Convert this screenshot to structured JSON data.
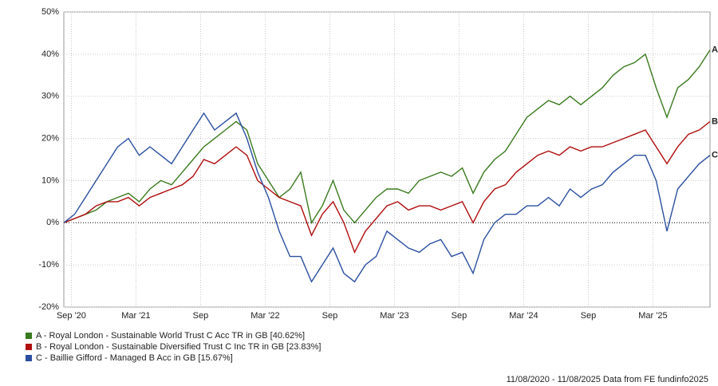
{
  "chart_data": {
    "type": "line",
    "ylim": [
      -20,
      50
    ],
    "yticks": [
      {
        "value": -20,
        "label": "-20%"
      },
      {
        "value": -10,
        "label": "-10%"
      },
      {
        "value": 0,
        "label": "0%"
      },
      {
        "value": 10,
        "label": "10%"
      },
      {
        "value": 20,
        "label": "20%"
      },
      {
        "value": 30,
        "label": "30%"
      },
      {
        "value": 40,
        "label": "40%"
      },
      {
        "value": 50,
        "label": "50%"
      }
    ],
    "xlim": [
      0,
      60
    ],
    "xticks": [
      {
        "value": 0.7,
        "label": "Sep '20"
      },
      {
        "value": 6.7,
        "label": "Mar '21"
      },
      {
        "value": 12.7,
        "label": "Sep"
      },
      {
        "value": 18.7,
        "label": "Mar '22"
      },
      {
        "value": 24.7,
        "label": "Sep"
      },
      {
        "value": 30.7,
        "label": "Mar '23"
      },
      {
        "value": 36.7,
        "label": "Sep"
      },
      {
        "value": 42.7,
        "label": "Mar '24"
      },
      {
        "value": 48.7,
        "label": "Sep"
      },
      {
        "value": 54.7,
        "label": "Mar '25"
      }
    ],
    "grid": true,
    "series": [
      {
        "name": "A - Royal London - Sustainable World Trust C Acc TR in GB [40.62%]",
        "end_label": "A",
        "color": "#3a7a1e",
        "values": [
          0,
          1,
          2,
          3,
          5,
          6,
          7,
          5,
          8,
          10,
          9,
          12,
          15,
          18,
          20,
          22,
          24,
          22,
          14,
          10,
          6,
          8,
          12,
          0,
          4,
          10,
          3,
          0,
          3,
          6,
          8,
          8,
          7,
          10,
          11,
          12,
          11,
          13,
          7,
          12,
          15,
          17,
          21,
          25,
          27,
          29,
          28,
          30,
          28,
          30,
          32,
          35,
          37,
          38,
          40,
          32,
          25,
          32,
          34,
          37,
          41
        ]
      },
      {
        "name": "B - Royal London - Sustainable Diversified Trust C Inc TR in GB [23.83%]",
        "end_label": "B",
        "color": "#b00d0d",
        "values": [
          0,
          1,
          2,
          4,
          5,
          5,
          6,
          4,
          6,
          7,
          8,
          9,
          11,
          15,
          14,
          16,
          18,
          16,
          10,
          8,
          6,
          5,
          4,
          -3,
          2,
          5,
          0,
          -7,
          -2,
          1,
          4,
          5,
          3,
          4,
          4,
          3,
          4,
          5,
          0,
          5,
          8,
          9,
          12,
          14,
          16,
          17,
          16,
          18,
          17,
          18,
          18,
          19,
          20,
          21,
          22,
          18,
          14,
          18,
          21,
          22,
          24
        ]
      },
      {
        "name": "C - Baillie Gifford - Managed B Acc in GB [15.67%]",
        "end_label": "C",
        "color": "#2a4fa0",
        "values": [
          0,
          2,
          6,
          10,
          14,
          18,
          20,
          16,
          18,
          16,
          14,
          18,
          22,
          26,
          22,
          24,
          26,
          20,
          12,
          6,
          -2,
          -8,
          -8,
          -14,
          -10,
          -6,
          -12,
          -14,
          -10,
          -8,
          -2,
          -4,
          -6,
          -7,
          -5,
          -4,
          -8,
          -7,
          -12,
          -4,
          0,
          2,
          2,
          4,
          4,
          6,
          4,
          8,
          6,
          8,
          9,
          12,
          14,
          16,
          16,
          10,
          -2,
          8,
          11,
          14,
          16
        ]
      }
    ],
    "footer": "11/08/2020 - 11/08/2025 Data from FE fundinfo2025"
  }
}
